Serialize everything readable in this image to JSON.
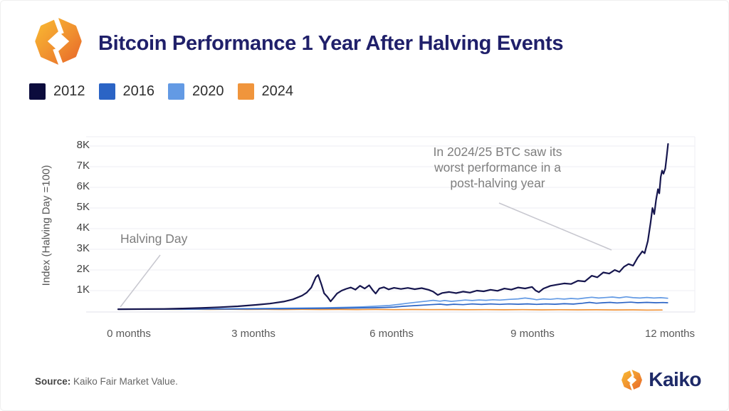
{
  "header": {
    "title": "Bitcoin Performance 1 Year After Halving Events"
  },
  "legend": [
    {
      "label": "2012",
      "color": "#0c0c3d"
    },
    {
      "label": "2016",
      "color": "#2b64c5"
    },
    {
      "label": "2020",
      "color": "#639ae4"
    },
    {
      "label": "2024",
      "color": "#f0953c"
    }
  ],
  "colors": {
    "title_navy": "#20206a",
    "brand_navy": "#1e2a68",
    "accent_orange": "#f0953c",
    "gridline": "#eeeef3",
    "annotation_gray": "#7e7e7e"
  },
  "chart_data": {
    "type": "line",
    "title": "Bitcoin Performance 1 Year After Halving Events",
    "xlabel": "",
    "ylabel": "Index (Halving Day =100)",
    "xticks": [
      "0 months",
      "3 months",
      "6 months",
      "9 months",
      "12 months"
    ],
    "xticks_months": [
      0,
      3,
      6,
      9,
      12
    ],
    "yticks": [
      "8K",
      "7K",
      "6K",
      "5K",
      "4K",
      "3K",
      "2K",
      "1K"
    ],
    "yticks_values": [
      8000,
      7000,
      6000,
      5000,
      4000,
      3000,
      2000,
      1000
    ],
    "ylim": [
      0,
      8450
    ],
    "xlim_months": [
      0,
      12.5
    ],
    "grid": "horizontal",
    "legend_position": "top-left",
    "series": [
      {
        "name": "2012",
        "color": "#16164e",
        "width": 2.2,
        "points": [
          [
            0,
            100
          ],
          [
            0.3,
            102
          ],
          [
            0.6,
            106
          ],
          [
            1,
            115
          ],
          [
            1.4,
            135
          ],
          [
            1.8,
            162
          ],
          [
            2.2,
            196
          ],
          [
            2.6,
            242
          ],
          [
            3,
            310
          ],
          [
            3.3,
            372
          ],
          [
            3.6,
            470
          ],
          [
            3.8,
            575
          ],
          [
            4,
            760
          ],
          [
            4.1,
            905
          ],
          [
            4.2,
            1150
          ],
          [
            4.3,
            1650
          ],
          [
            4.35,
            1760
          ],
          [
            4.42,
            1300
          ],
          [
            4.48,
            870
          ],
          [
            4.55,
            700
          ],
          [
            4.62,
            480
          ],
          [
            4.68,
            640
          ],
          [
            4.76,
            860
          ],
          [
            4.86,
            1000
          ],
          [
            4.96,
            1085
          ],
          [
            5.06,
            1150
          ],
          [
            5.16,
            1050
          ],
          [
            5.26,
            1235
          ],
          [
            5.36,
            1100
          ],
          [
            5.46,
            1260
          ],
          [
            5.54,
            1010
          ],
          [
            5.6,
            860
          ],
          [
            5.68,
            1100
          ],
          [
            5.78,
            1165
          ],
          [
            5.88,
            1060
          ],
          [
            6,
            1135
          ],
          [
            6.15,
            1080
          ],
          [
            6.3,
            1130
          ],
          [
            6.45,
            1070
          ],
          [
            6.6,
            1120
          ],
          [
            6.75,
            1040
          ],
          [
            6.85,
            950
          ],
          [
            6.95,
            790
          ],
          [
            7.05,
            885
          ],
          [
            7.2,
            935
          ],
          [
            7.35,
            880
          ],
          [
            7.5,
            950
          ],
          [
            7.65,
            905
          ],
          [
            7.8,
            1000
          ],
          [
            7.95,
            965
          ],
          [
            8.1,
            1040
          ],
          [
            8.25,
            990
          ],
          [
            8.4,
            1100
          ],
          [
            8.55,
            1050
          ],
          [
            8.7,
            1150
          ],
          [
            8.85,
            1105
          ],
          [
            9,
            1180
          ],
          [
            9.08,
            1005
          ],
          [
            9.15,
            925
          ],
          [
            9.25,
            1100
          ],
          [
            9.4,
            1230
          ],
          [
            9.55,
            1290
          ],
          [
            9.7,
            1350
          ],
          [
            9.85,
            1320
          ],
          [
            10,
            1480
          ],
          [
            10.15,
            1445
          ],
          [
            10.3,
            1720
          ],
          [
            10.42,
            1645
          ],
          [
            10.55,
            1880
          ],
          [
            10.68,
            1825
          ],
          [
            10.8,
            2000
          ],
          [
            10.9,
            1905
          ],
          [
            11,
            2150
          ],
          [
            11.1,
            2285
          ],
          [
            11.2,
            2210
          ],
          [
            11.3,
            2600
          ],
          [
            11.4,
            2905
          ],
          [
            11.45,
            2810
          ],
          [
            11.52,
            3400
          ],
          [
            11.58,
            4300
          ],
          [
            11.62,
            5000
          ],
          [
            11.66,
            4705
          ],
          [
            11.7,
            5400
          ],
          [
            11.74,
            5910
          ],
          [
            11.77,
            5710
          ],
          [
            11.8,
            6500
          ],
          [
            11.83,
            6810
          ],
          [
            11.86,
            6660
          ],
          [
            11.9,
            6910
          ],
          [
            11.93,
            7500
          ],
          [
            11.96,
            8100
          ]
        ]
      },
      {
        "name": "2016",
        "color": "#2b64c5",
        "width": 1.7,
        "points": [
          [
            0,
            100
          ],
          [
            0.5,
            100
          ],
          [
            1,
            103
          ],
          [
            1.5,
            105
          ],
          [
            2,
            110
          ],
          [
            2.5,
            112
          ],
          [
            3,
            118
          ],
          [
            3.5,
            122
          ],
          [
            4,
            130
          ],
          [
            4.5,
            142
          ],
          [
            5,
            155
          ],
          [
            5.5,
            170
          ],
          [
            5.8,
            185
          ],
          [
            6,
            205
          ],
          [
            6.2,
            240
          ],
          [
            6.5,
            280
          ],
          [
            6.8,
            320
          ],
          [
            7,
            345
          ],
          [
            7.15,
            310
          ],
          [
            7.3,
            340
          ],
          [
            7.5,
            320
          ],
          [
            7.7,
            355
          ],
          [
            7.9,
            330
          ],
          [
            8.1,
            355
          ],
          [
            8.3,
            335
          ],
          [
            8.5,
            355
          ],
          [
            8.7,
            340
          ],
          [
            8.9,
            360
          ],
          [
            9.1,
            335
          ],
          [
            9.3,
            355
          ],
          [
            9.5,
            340
          ],
          [
            9.7,
            365
          ],
          [
            9.9,
            350
          ],
          [
            10.1,
            390
          ],
          [
            10.25,
            430
          ],
          [
            10.4,
            390
          ],
          [
            10.55,
            415
          ],
          [
            10.7,
            430
          ],
          [
            10.85,
            405
          ],
          [
            11,
            425
          ],
          [
            11.15,
            440
          ],
          [
            11.3,
            415
          ],
          [
            11.5,
            430
          ],
          [
            11.7,
            415
          ],
          [
            11.85,
            425
          ],
          [
            11.95,
            415
          ]
        ]
      },
      {
        "name": "2020",
        "color": "#639ae4",
        "width": 1.7,
        "points": [
          [
            0,
            100
          ],
          [
            0.5,
            103
          ],
          [
            1,
            108
          ],
          [
            1.5,
            110
          ],
          [
            2,
            115
          ],
          [
            2.5,
            122
          ],
          [
            3,
            130
          ],
          [
            3.5,
            140
          ],
          [
            4,
            155
          ],
          [
            4.5,
            170
          ],
          [
            5,
            195
          ],
          [
            5.3,
            215
          ],
          [
            5.6,
            245
          ],
          [
            5.9,
            280
          ],
          [
            6.1,
            330
          ],
          [
            6.3,
            390
          ],
          [
            6.5,
            440
          ],
          [
            6.7,
            490
          ],
          [
            6.85,
            530
          ],
          [
            7,
            490
          ],
          [
            7.1,
            520
          ],
          [
            7.25,
            480
          ],
          [
            7.4,
            510
          ],
          [
            7.55,
            545
          ],
          [
            7.7,
            520
          ],
          [
            7.85,
            550
          ],
          [
            8,
            530
          ],
          [
            8.15,
            560
          ],
          [
            8.3,
            540
          ],
          [
            8.5,
            575
          ],
          [
            8.7,
            600
          ],
          [
            8.85,
            640
          ],
          [
            9,
            600
          ],
          [
            9.1,
            560
          ],
          [
            9.25,
            600
          ],
          [
            9.4,
            580
          ],
          [
            9.55,
            615
          ],
          [
            9.7,
            590
          ],
          [
            9.85,
            620
          ],
          [
            10,
            600
          ],
          [
            10.15,
            640
          ],
          [
            10.3,
            680
          ],
          [
            10.45,
            640
          ],
          [
            10.6,
            665
          ],
          [
            10.75,
            690
          ],
          [
            10.9,
            650
          ],
          [
            11.05,
            700
          ],
          [
            11.2,
            660
          ],
          [
            11.35,
            640
          ],
          [
            11.5,
            670
          ],
          [
            11.65,
            640
          ],
          [
            11.8,
            660
          ],
          [
            11.95,
            630
          ]
        ]
      },
      {
        "name": "2024",
        "color": "#f0953c",
        "width": 1.7,
        "points": [
          [
            0,
            100
          ],
          [
            0.4,
            96
          ],
          [
            0.8,
            100
          ],
          [
            1.2,
            92
          ],
          [
            1.6,
            97
          ],
          [
            2,
            90
          ],
          [
            2.4,
            95
          ],
          [
            2.8,
            88
          ],
          [
            3.2,
            93
          ],
          [
            3.6,
            87
          ],
          [
            4,
            92
          ],
          [
            4.4,
            85
          ],
          [
            4.8,
            90
          ],
          [
            5.2,
            82
          ],
          [
            5.6,
            88
          ],
          [
            6,
            80
          ],
          [
            6.4,
            85
          ],
          [
            6.8,
            78
          ],
          [
            7.2,
            83
          ],
          [
            7.6,
            75
          ],
          [
            8,
            80
          ],
          [
            8.4,
            73
          ],
          [
            8.8,
            78
          ],
          [
            9.2,
            70
          ],
          [
            9.6,
            75
          ],
          [
            10,
            68
          ],
          [
            10.4,
            72
          ],
          [
            10.8,
            64
          ],
          [
            11.2,
            68
          ],
          [
            11.5,
            60
          ],
          [
            11.83,
            62
          ]
        ]
      }
    ],
    "annotations": [
      {
        "id": "halving-day",
        "text": "Halving Day"
      },
      {
        "id": "worst-performance",
        "text": "In 2024/25 BTC saw its\nworst performance in a\npost-halving year"
      }
    ]
  },
  "footer": {
    "source_label": "Source:",
    "source_value": " Kaiko Fair Market Value.",
    "brand": "Kaiko"
  }
}
